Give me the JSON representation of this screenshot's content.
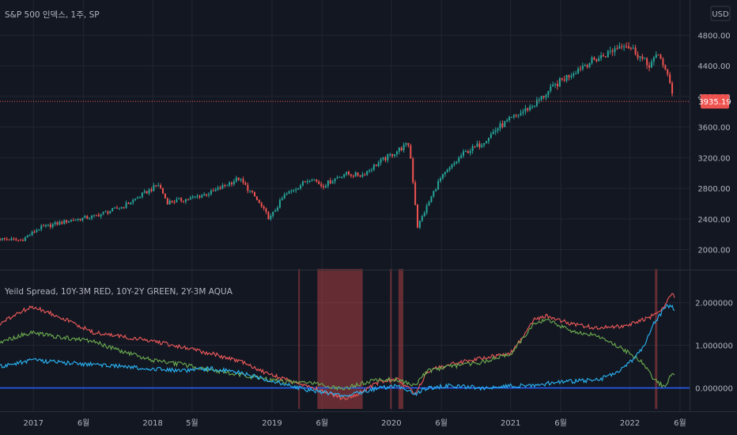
{
  "main": {
    "title": "S&P 500 인덱스, 1주, SP",
    "currency": "USD",
    "last_price_label": "3935.19",
    "last_price": 3935.19,
    "y_ticks": [
      "4800.00",
      "4400.00",
      "4000.00",
      "3600.00",
      "3200.00",
      "2800.00",
      "2400.00",
      "2000.00"
    ],
    "y_tick_values": [
      4800,
      4400,
      4000,
      3600,
      3200,
      2800,
      2400,
      2000
    ],
    "ylim": [
      1850,
      4950
    ]
  },
  "sub": {
    "title": "Yeild Spread, 10Y-3M RED, 10Y-2Y GREEN, 2Y-3M AQUA",
    "y_ticks": [
      "2.000000",
      "1.000000",
      "0.000000"
    ],
    "y_tick_values": [
      2,
      1,
      0
    ],
    "ylim": [
      -0.4,
      2.7
    ]
  },
  "x_axis": {
    "labels": [
      "2017",
      "6월",
      "2018",
      "5월",
      "2019",
      "6월",
      "2020",
      "6월",
      "2021",
      "6월",
      "2022",
      "6월"
    ],
    "times": [
      2017.0,
      2017.42,
      2018.0,
      2018.33,
      2019.0,
      2019.42,
      2020.0,
      2020.42,
      2021.0,
      2021.42,
      2022.0,
      2022.42
    ],
    "range": [
      2016.72,
      2022.5
    ]
  },
  "colors": {
    "background": "#131722",
    "grid": "#232632",
    "up": "#26a69a",
    "down": "#ef5350",
    "red_line": "#f05a5a",
    "green_line": "#6cad4f",
    "aqua_line": "#29b6f6",
    "zero_line": "#2962ff",
    "shade": "#c94a4a"
  },
  "chart_data": [
    {
      "type": "candlestick",
      "title": "S&P 500 인덱스, 1주, SP",
      "x_anchor_times": [
        2016.72,
        2016.9,
        2017.05,
        2017.3,
        2017.5,
        2017.75,
        2018.05,
        2018.12,
        2018.3,
        2018.5,
        2018.72,
        2018.85,
        2018.98,
        2019.1,
        2019.33,
        2019.42,
        2019.6,
        2019.75,
        2019.9,
        2020.1,
        2020.15,
        2020.22,
        2020.4,
        2020.6,
        2020.75,
        2020.9,
        2021.0,
        2021.2,
        2021.4,
        2021.6,
        2021.8,
        2021.95,
        2022.05,
        2022.15,
        2022.25,
        2022.35,
        2022.37
      ],
      "close_anchors": [
        2140,
        2120,
        2280,
        2380,
        2430,
        2560,
        2850,
        2620,
        2660,
        2750,
        2930,
        2700,
        2400,
        2700,
        2940,
        2830,
        2990,
        2970,
        3140,
        3340,
        3380,
        2300,
        2900,
        3250,
        3380,
        3600,
        3700,
        3900,
        4180,
        4400,
        4550,
        4700,
        4580,
        4400,
        4550,
        4100,
        3935.19
      ],
      "ylim": [
        1850,
        4950
      ],
      "y_ticks": [
        4800,
        4400,
        4000,
        3600,
        3200,
        2800,
        2400,
        2000
      ],
      "last_value": 3935.19
    },
    {
      "type": "line",
      "title": "Yeild Spread, 10Y-3M RED, 10Y-2Y GREEN, 2Y-3M AQUA",
      "x": [
        2016.72,
        2016.9,
        2017.0,
        2017.2,
        2017.5,
        2017.75,
        2018.0,
        2018.25,
        2018.5,
        2018.75,
        2018.95,
        2019.1,
        2019.3,
        2019.45,
        2019.6,
        2019.75,
        2019.9,
        2020.05,
        2020.2,
        2020.3,
        2020.5,
        2020.75,
        2021.0,
        2021.2,
        2021.3,
        2021.5,
        2021.75,
        2021.95,
        2022.1,
        2022.2,
        2022.3,
        2022.35,
        2022.38
      ],
      "series": [
        {
          "name": "10Y-3M",
          "color": "#f05a5a",
          "values": [
            1.5,
            1.8,
            1.9,
            1.7,
            1.3,
            1.2,
            1.1,
            0.95,
            0.8,
            0.6,
            0.35,
            0.2,
            0.05,
            -0.1,
            -0.25,
            -0.1,
            0.15,
            0.2,
            -0.15,
            0.4,
            0.55,
            0.7,
            0.8,
            1.6,
            1.7,
            1.5,
            1.4,
            1.45,
            1.6,
            1.7,
            1.95,
            2.25,
            2.1
          ]
        },
        {
          "name": "10Y-2Y",
          "color": "#6cad4f",
          "values": [
            1.05,
            1.25,
            1.3,
            1.2,
            1.1,
            0.85,
            0.65,
            0.55,
            0.4,
            0.3,
            0.2,
            0.15,
            0.12,
            0.05,
            -0.02,
            0.1,
            0.2,
            0.2,
            0.05,
            0.4,
            0.5,
            0.6,
            0.8,
            1.5,
            1.6,
            1.35,
            1.2,
            0.9,
            0.6,
            0.2,
            0.0,
            0.35,
            0.25
          ]
        },
        {
          "name": "2Y-3M",
          "color": "#29b6f6",
          "values": [
            0.5,
            0.6,
            0.65,
            0.6,
            0.55,
            0.5,
            0.45,
            0.4,
            0.45,
            0.35,
            0.2,
            0.1,
            -0.05,
            -0.1,
            -0.2,
            -0.1,
            0.0,
            0.05,
            -0.15,
            0.0,
            0.05,
            0.0,
            0.05,
            0.05,
            0.1,
            0.15,
            0.2,
            0.45,
            0.9,
            1.5,
            1.9,
            1.95,
            1.75
          ]
        }
      ],
      "inversion_shading": [
        [
          2019.22,
          2019.23
        ],
        [
          2019.38,
          2019.76
        ],
        [
          2019.99,
          2020.0
        ],
        [
          2020.06,
          2020.1
        ],
        [
          2022.21,
          2022.23
        ]
      ],
      "ylim": [
        -0.4,
        2.7
      ],
      "y_ticks": [
        2,
        1,
        0
      ],
      "legend_placement": "top-left"
    }
  ]
}
